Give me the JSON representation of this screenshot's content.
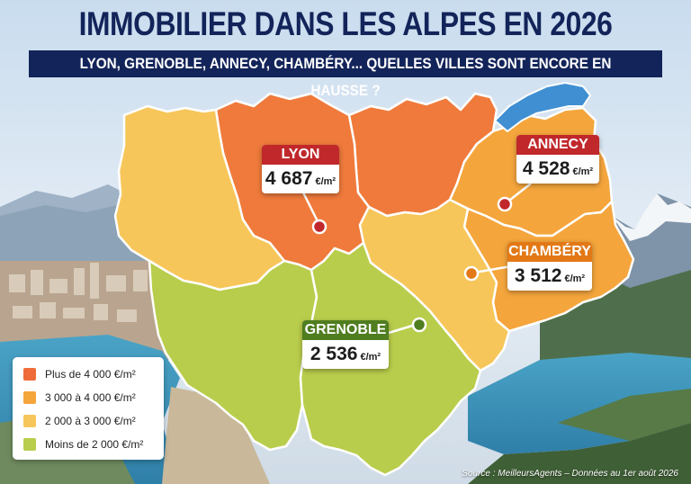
{
  "title": "IMMOBILIER DANS LES ALPES EN 2026",
  "subtitle": "LYON, GRENOBLE, ANNECY, CHAMBÉRY... QUELLES VILLES SONT ENCORE EN HAUSSE ?",
  "unit": "€/m²",
  "colors": {
    "high": "#ef7a3b",
    "mid_high": "#f4a53c",
    "mid": "#f7c65a",
    "low": "#b9cd4c",
    "lake": "#3f8fd2",
    "navy": "#13245a"
  },
  "cities": [
    {
      "id": "lyon",
      "name": "LYON",
      "price": "4 687",
      "header_color": "#c0282b",
      "pin_color": "#c0282b"
    },
    {
      "id": "annecy",
      "name": "ANNECY",
      "price": "4 528",
      "header_color": "#c0282b",
      "pin_color": "#c0282b"
    },
    {
      "id": "chambery",
      "name": "CHAMBÉRY",
      "price": "3 512",
      "header_color": "#e27816",
      "pin_color": "#e27816"
    },
    {
      "id": "grenoble",
      "name": "GRENOBLE",
      "price": "2 536",
      "header_color": "#4f7d1f",
      "pin_color": "#4f7d1f"
    }
  ],
  "legend": [
    {
      "label": "Plus de 4 000 €/m²",
      "color": "#ef6c3a"
    },
    {
      "label": "3 000 à 4 000 €/m²",
      "color": "#f4a53c"
    },
    {
      "label": "2 000 à 3 000 €/m²",
      "color": "#f7c65a"
    },
    {
      "label": "Moins de 2 000 €/m²",
      "color": "#b9cd4c"
    }
  ],
  "source": "Source : MeilleursAgents – Données au 1er août 2026"
}
